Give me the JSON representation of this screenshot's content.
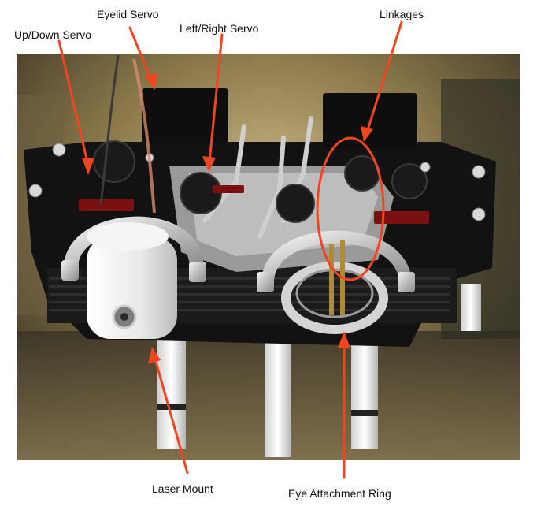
{
  "labels": {
    "up_down_servo": "Up/Down Servo",
    "eyelid_servo": "Eyelid Servo",
    "left_right_servo": "Left/Right Servo",
    "linkages": "Linkages",
    "laser_mount": "Laser Mount",
    "eye_attachment_ring": "Eye Attachment Ring"
  },
  "colors": {
    "arrow": "#f0451f",
    "background": "#ffffff",
    "frame": "#111111",
    "aluminum": "#cfcfcf",
    "foam": "#eeeeee"
  }
}
